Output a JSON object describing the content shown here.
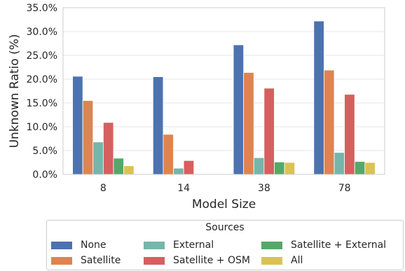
{
  "chart_data": {
    "type": "bar",
    "xlabel": "Model Size",
    "ylabel": "Unknown Ratio (%)",
    "ylim": [
      0,
      35
    ],
    "yticks": [
      "0.0%",
      "5.0%",
      "10.0%",
      "15.0%",
      "20.0%",
      "25.0%",
      "30.0%",
      "35.0%"
    ],
    "grid": true,
    "categories": [
      "8",
      "14",
      "38",
      "78"
    ],
    "series": [
      {
        "name": "None",
        "color": "#4c72b0",
        "values": [
          20.6,
          20.5,
          27.2,
          32.2
        ]
      },
      {
        "name": "Satellite",
        "color": "#dd8452",
        "values": [
          15.5,
          8.4,
          21.4,
          21.9
        ]
      },
      {
        "name": "External",
        "color": "#76b5ac",
        "values": [
          6.8,
          1.3,
          3.5,
          4.6
        ]
      },
      {
        "name": "Satellite + OSM",
        "color": "#d65f5f",
        "values": [
          10.9,
          2.9,
          18.1,
          16.8
        ]
      },
      {
        "name": "Satellite + External",
        "color": "#55a868",
        "values": [
          3.4,
          0.0,
          2.6,
          2.7
        ]
      },
      {
        "name": "All",
        "color": "#dbc256",
        "values": [
          1.8,
          0.0,
          2.5,
          2.5
        ]
      }
    ],
    "legend": {
      "title": "Sources",
      "placement": "bottom"
    }
  }
}
